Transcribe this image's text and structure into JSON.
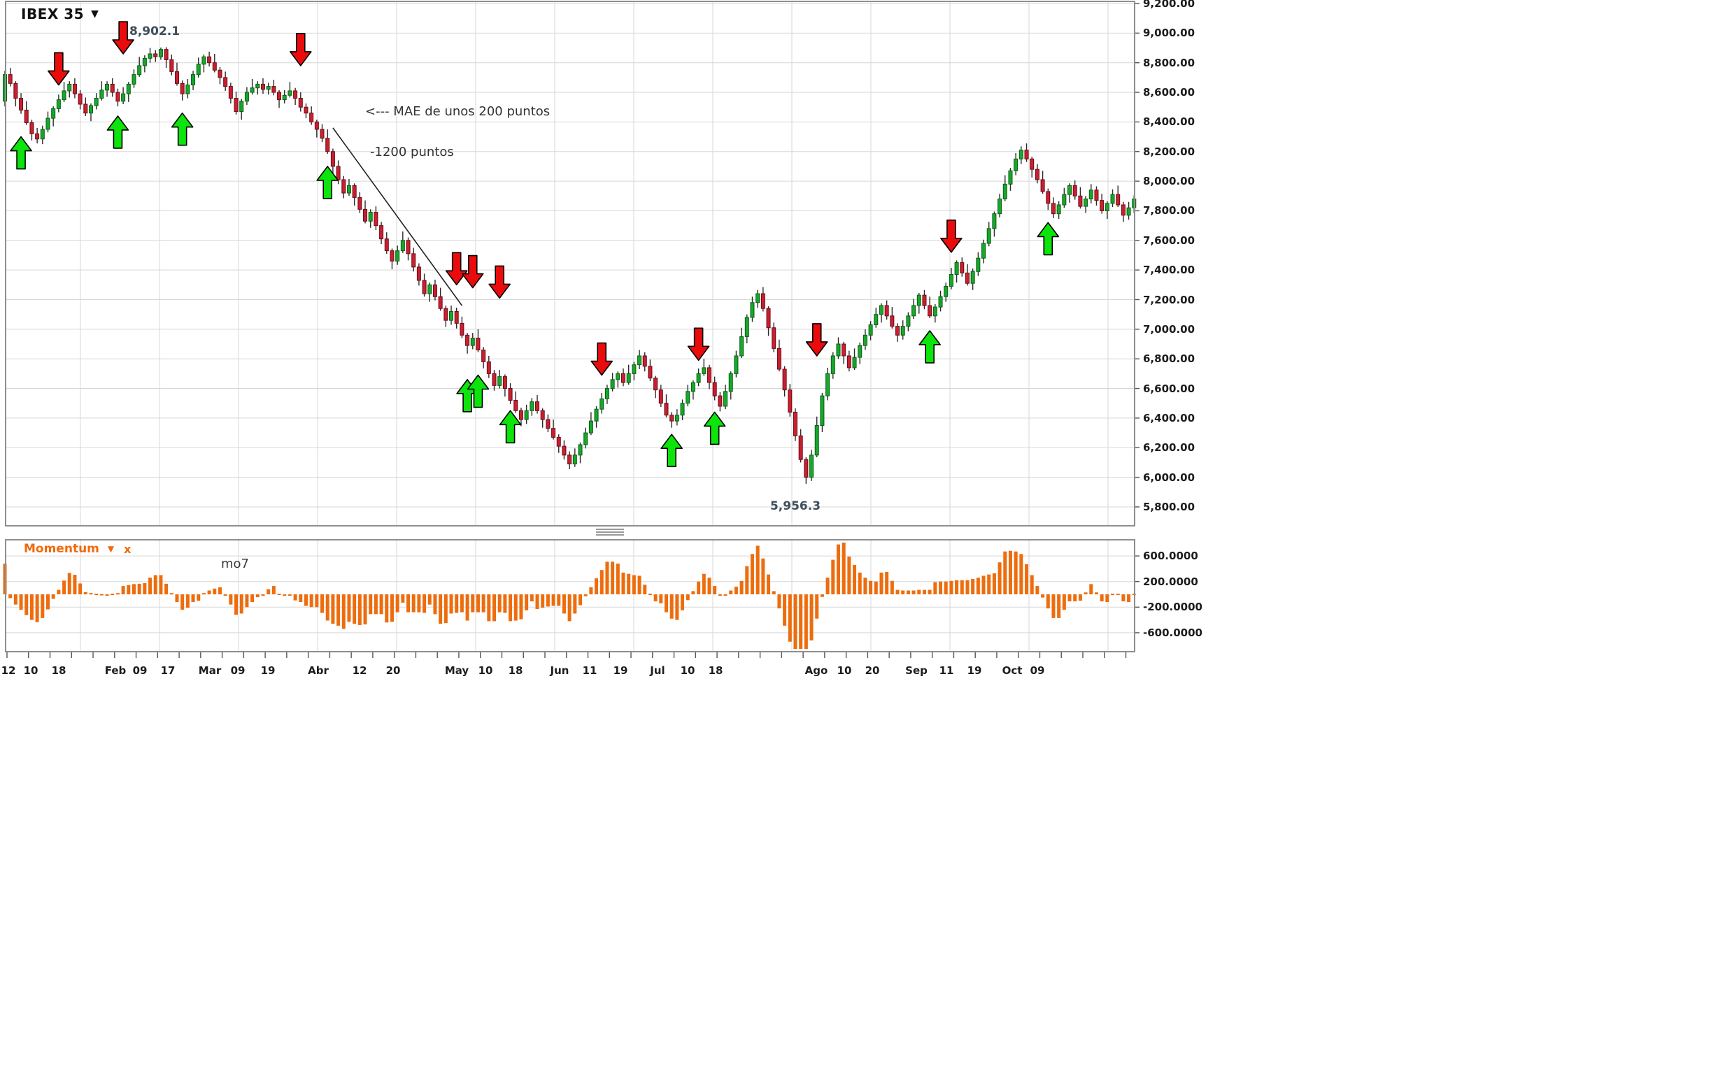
{
  "window": {
    "symbol_title": "IBEX 35",
    "symbol_dropdown_glyph": "▼"
  },
  "annotations": {
    "high_label": "8,902.1",
    "low_label": "5,956.3",
    "mae_note": "<--- MAE de unos 200 puntos",
    "points_note": "-1200 puntos"
  },
  "momentum_panel": {
    "title": "Momentum",
    "dropdown_glyph": "▼",
    "close_glyph": "x",
    "series_label": "mo7",
    "axis_labels": [
      "600.0000",
      "200.0000",
      "-200.0000",
      "-600.0000"
    ],
    "axis_values": [
      600,
      200,
      -200,
      -600
    ]
  },
  "price_axis": {
    "max": 9200,
    "min": 5800,
    "step": 200,
    "labels": [
      "9,200.00",
      "9,000.00",
      "8,800.00",
      "8,600.00",
      "8,400.00",
      "8,200.00",
      "8,000.00",
      "7,800.00",
      "7,600.00",
      "7,400.00",
      "7,200.00",
      "7,000.00",
      "6,800.00",
      "6,600.00",
      "6,400.00",
      "6,200.00",
      "6,000.00",
      "5,800.00"
    ]
  },
  "date_axis": [
    {
      "label": "12",
      "x": 12
    },
    {
      "label": "10",
      "x": 44
    },
    {
      "label": "18",
      "x": 84
    },
    {
      "label": "Feb",
      "x": 165
    },
    {
      "label": "09",
      "x": 200
    },
    {
      "label": "17",
      "x": 240
    },
    {
      "label": "Mar",
      "x": 300
    },
    {
      "label": "09",
      "x": 340
    },
    {
      "label": "19",
      "x": 383
    },
    {
      "label": "Abr",
      "x": 455
    },
    {
      "label": "12",
      "x": 514
    },
    {
      "label": "20",
      "x": 562
    },
    {
      "label": "May",
      "x": 653
    },
    {
      "label": "10",
      "x": 694
    },
    {
      "label": "18",
      "x": 737
    },
    {
      "label": "Jun",
      "x": 800
    },
    {
      "label": "11",
      "x": 843
    },
    {
      "label": "19",
      "x": 887
    },
    {
      "label": "Jul",
      "x": 940
    },
    {
      "label": "10",
      "x": 983
    },
    {
      "label": "18",
      "x": 1023
    },
    {
      "label": "Ago",
      "x": 1167
    },
    {
      "label": "10",
      "x": 1207
    },
    {
      "label": "20",
      "x": 1247
    },
    {
      "label": "Sep",
      "x": 1310
    },
    {
      "label": "11",
      "x": 1353
    },
    {
      "label": "19",
      "x": 1393
    },
    {
      "label": "Oct",
      "x": 1447
    },
    {
      "label": "09",
      "x": 1483
    }
  ],
  "colors": {
    "candle_up_fill": "#17a82b",
    "candle_up_stroke": "#0b5e14",
    "candle_down_fill": "#c92031",
    "candle_down_stroke": "#6e0a14",
    "wick": "#2b2b2b",
    "arrow_buy": "#0ce40c",
    "arrow_sell": "#ea0c0c",
    "arrow_stroke": "#000000",
    "momentum_bar": "#ed6d0e",
    "grid": "#d7d7d7",
    "frame": "#8f8f8f",
    "tick": "#555555",
    "trendline": "#222222",
    "accent_orange": "#f2690d",
    "hl_label": "#3d4f5c"
  },
  "chart_data": {
    "type": "candlestick",
    "symbol": "IBEX 35",
    "period_shown": "Ene 12 - Oct, daily",
    "ylim": [
      5800,
      9200
    ],
    "grid": true,
    "first_open": 8540,
    "closes": [
      8720,
      8660,
      8560,
      8480,
      8395,
      8320,
      8285,
      8350,
      8425,
      8490,
      8550,
      8610,
      8655,
      8590,
      8520,
      8460,
      8510,
      8560,
      8615,
      8655,
      8600,
      8540,
      8590,
      8655,
      8720,
      8780,
      8830,
      8860,
      8840,
      8890,
      8820,
      8740,
      8660,
      8590,
      8650,
      8720,
      8790,
      8840,
      8800,
      8750,
      8700,
      8640,
      8560,
      8470,
      8540,
      8600,
      8630,
      8655,
      8620,
      8640,
      8600,
      8550,
      8580,
      8610,
      8560,
      8500,
      8460,
      8400,
      8350,
      8290,
      8200,
      8100,
      8010,
      7920,
      7970,
      7890,
      7810,
      7730,
      7790,
      7700,
      7610,
      7530,
      7460,
      7530,
      7600,
      7510,
      7420,
      7330,
      7240,
      7300,
      7220,
      7140,
      7060,
      7120,
      7040,
      6960,
      6890,
      6940,
      6860,
      6780,
      6700,
      6620,
      6680,
      6600,
      6520,
      6450,
      6390,
      6450,
      6510,
      6450,
      6390,
      6330,
      6270,
      6210,
      6150,
      6090,
      6150,
      6220,
      6300,
      6380,
      6460,
      6530,
      6600,
      6660,
      6700,
      6640,
      6700,
      6760,
      6820,
      6750,
      6670,
      6590,
      6500,
      6420,
      6380,
      6420,
      6500,
      6580,
      6640,
      6700,
      6740,
      6640,
      6550,
      6480,
      6580,
      6700,
      6820,
      6950,
      7080,
      7180,
      7240,
      7140,
      7010,
      6870,
      6730,
      6590,
      6440,
      6280,
      6120,
      6000,
      6150,
      6350,
      6550,
      6700,
      6820,
      6900,
      6820,
      6740,
      6810,
      6890,
      6960,
      7030,
      7100,
      7160,
      7090,
      7020,
      6960,
      7020,
      7090,
      7160,
      7230,
      7160,
      7090,
      7150,
      7220,
      7290,
      7370,
      7450,
      7380,
      7310,
      7390,
      7480,
      7580,
      7680,
      7780,
      7880,
      7980,
      8070,
      8150,
      8210,
      8150,
      8080,
      8010,
      7930,
      7850,
      7780,
      7840,
      7910,
      7970,
      7900,
      7830,
      7880,
      7940,
      7870,
      7800,
      7850,
      7910,
      7840,
      7770,
      7820,
      7880
    ],
    "high_point": {
      "day": 29,
      "price": 8902.1
    },
    "low_point": {
      "day": 149,
      "price": 5956.3
    },
    "indicator": {
      "name": "Momentum",
      "series": "mo7",
      "period": 7,
      "derivation": "close[i] - close[i-7]",
      "lead_bar": 480
    },
    "signals": {
      "sell": [
        {
          "day": 10,
          "price": 8650
        },
        {
          "day": 22,
          "price": 8860
        },
        {
          "day": 55,
          "price": 8780
        },
        {
          "day": 84,
          "price": 7300
        },
        {
          "day": 87,
          "price": 7280
        },
        {
          "day": 92,
          "price": 7210
        },
        {
          "day": 111,
          "price": 6690
        },
        {
          "day": 129,
          "price": 6790
        },
        {
          "day": 151,
          "price": 6820
        },
        {
          "day": 176,
          "price": 7520
        }
      ],
      "buy": [
        {
          "day": 3,
          "price": 8300
        },
        {
          "day": 21,
          "price": 8440
        },
        {
          "day": 33,
          "price": 8460
        },
        {
          "day": 60,
          "price": 8100
        },
        {
          "day": 86,
          "price": 6660
        },
        {
          "day": 88,
          "price": 6690
        },
        {
          "day": 94,
          "price": 6450
        },
        {
          "day": 124,
          "price": 6290
        },
        {
          "day": 132,
          "price": 6440
        },
        {
          "day": 172,
          "price": 6990
        },
        {
          "day": 194,
          "price": 7720
        }
      ]
    },
    "trendline": {
      "from": {
        "day": 61,
        "price": 8360
      },
      "to": {
        "day": 85,
        "price": 7160
      }
    }
  }
}
